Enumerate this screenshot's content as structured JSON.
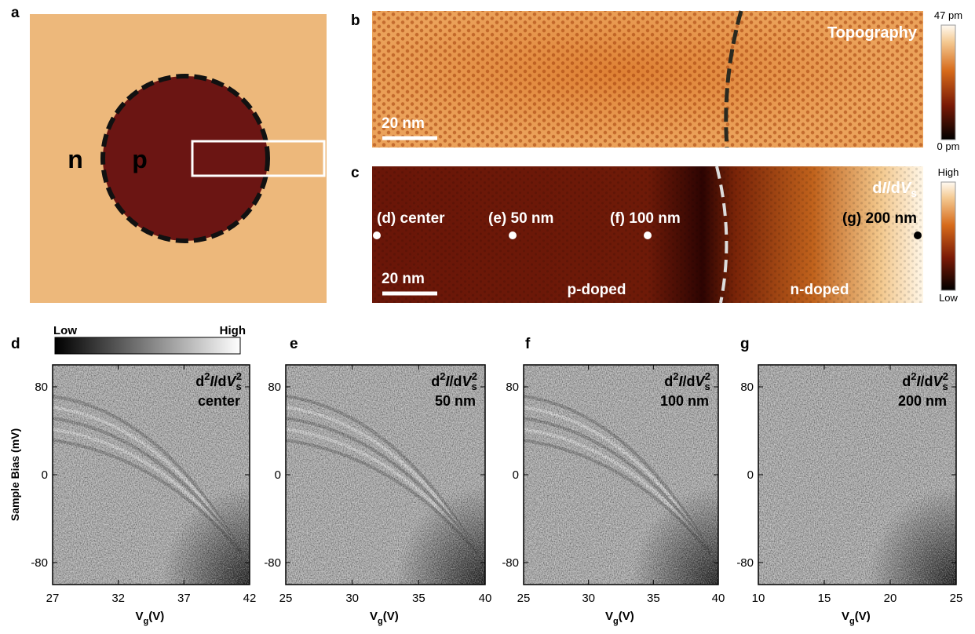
{
  "figure": {
    "panel_letters": [
      "a",
      "b",
      "c",
      "d",
      "e",
      "f",
      "g"
    ],
    "a": {
      "outer": "n",
      "inner": "p"
    },
    "b": {
      "title": "Topography",
      "scale_bar": "20 nm",
      "colorbar": {
        "max": "47 pm",
        "min": "0 pm"
      }
    },
    "c": {
      "quantity_parts": [
        "d",
        "I",
        "/d",
        "V",
        "s"
      ],
      "points": [
        "(d) center",
        "(e) 50 nm",
        "(f) 100 nm",
        "(g) 200 nm"
      ],
      "scale_bar": "20 nm",
      "regions": [
        "p-doped",
        "n-doped"
      ],
      "colorbar": {
        "max": "High",
        "min": "Low"
      }
    },
    "spectra": {
      "colorbar": {
        "min": "Low",
        "max": "High"
      },
      "ylabel": "Sample Bias (mV)",
      "quantity_parts": [
        "d",
        "2",
        "I",
        "/d",
        "V",
        "s",
        "2"
      ],
      "xlabel_parts": [
        "V",
        "g",
        "(V)"
      ],
      "ylim": [
        -100,
        100
      ],
      "yticks": [
        80,
        0,
        -80
      ],
      "panels": [
        {
          "position": "center",
          "xlim": [
            27,
            42
          ],
          "xticks": [
            27,
            32,
            37,
            42
          ]
        },
        {
          "position": "50 nm",
          "xlim": [
            25,
            40
          ],
          "xticks": [
            25,
            30,
            35,
            40
          ]
        },
        {
          "position": "100 nm",
          "xlim": [
            25,
            40
          ],
          "xticks": [
            25,
            30,
            35,
            40
          ]
        },
        {
          "position": "200 nm",
          "xlim": [
            10,
            25
          ],
          "xticks": [
            10,
            15,
            20,
            25
          ]
        }
      ]
    }
  }
}
